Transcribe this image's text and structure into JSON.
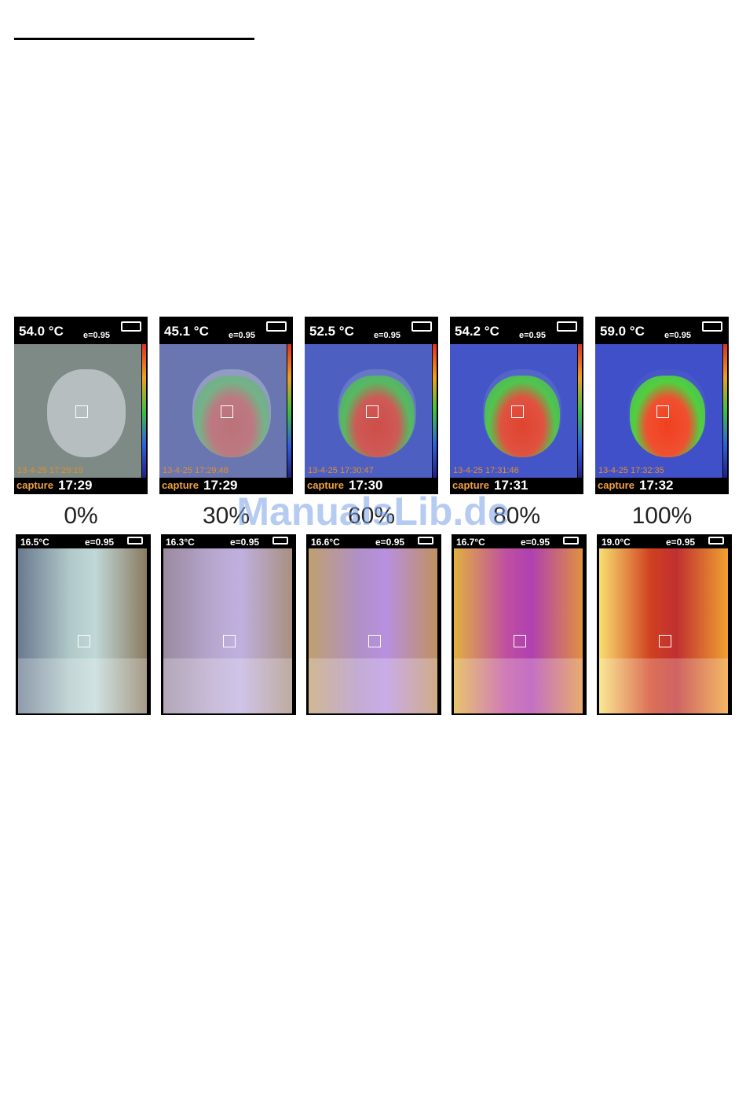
{
  "rule": "",
  "watermark": "ManualsLib.de",
  "panels": [
    {
      "blend": "0%",
      "top": {
        "temperature": "54.0 °C",
        "emissivity": "e=0.95",
        "timestamp": "13-4-25 17:29:19",
        "capture": "capture",
        "time": "17:29"
      },
      "bottom": {
        "temperature": "16.5°C",
        "emissivity": "e=0.95"
      }
    },
    {
      "blend": "30%",
      "top": {
        "temperature": "45.1 °C",
        "emissivity": "e=0.95",
        "timestamp": "13-4-25 17:29:48",
        "capture": "capture",
        "time": "17:29"
      },
      "bottom": {
        "temperature": "16.3°C",
        "emissivity": "e=0.95"
      }
    },
    {
      "blend": "60%",
      "top": {
        "temperature": "52.5 °C",
        "emissivity": "e=0.95",
        "timestamp": "13-4-25 17:30:47",
        "capture": "capture",
        "time": "17:30"
      },
      "bottom": {
        "temperature": "16.6°C",
        "emissivity": "e=0.95"
      }
    },
    {
      "blend": "80%",
      "top": {
        "temperature": "54.2 °C",
        "emissivity": "e=0.95",
        "timestamp": "13-4-25 17:31:46",
        "capture": "capture",
        "time": "17:31"
      },
      "bottom": {
        "temperature": "16.7°C",
        "emissivity": "e=0.95"
      }
    },
    {
      "blend": "100%",
      "top": {
        "temperature": "59.0 °C",
        "emissivity": "e=0.95",
        "timestamp": "13-4-25 17:32:35",
        "capture": "capture",
        "time": "17:32"
      },
      "bottom": {
        "temperature": "19.0°C",
        "emissivity": "e=0.95"
      }
    }
  ]
}
